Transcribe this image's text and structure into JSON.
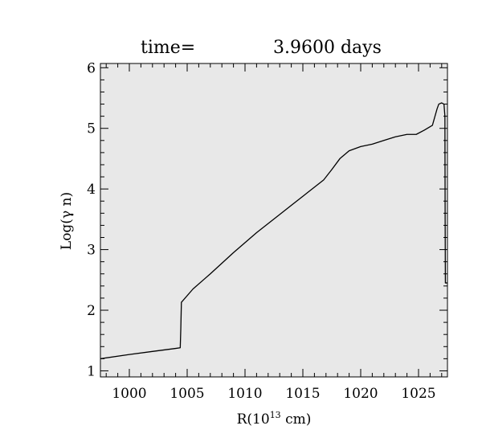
{
  "chart_data": {
    "type": "line",
    "title_left": "time=",
    "title_value": "3.9600 days",
    "xlabel": "R(10",
    "xlabel_exp": "13",
    "xlabel_suffix": " cm)",
    "ylabel": "Log(γ n)",
    "xlim": [
      997.5,
      1027.5
    ],
    "ylim": [
      0.9,
      6.07
    ],
    "xticks": [
      1000,
      1005,
      1010,
      1015,
      1020,
      1025
    ],
    "yticks": [
      1,
      2,
      3,
      4,
      5,
      6
    ],
    "grid": false,
    "plot_background": "#e8e8e8",
    "line_color": "#000000",
    "series": [
      {
        "x": [
          997.5,
          1000,
          1002,
          1004,
          1004.4,
          1004.45,
          1004.5,
          1005.5,
          1007,
          1009,
          1011,
          1013,
          1015,
          1016.8,
          1017.5,
          1018.2,
          1019,
          1020,
          1021,
          1022,
          1023,
          1024,
          1024.8,
          1025.5,
          1026.2,
          1026.6,
          1026.75,
          1027,
          1027.2,
          1027.28,
          1027.3,
          1027.32,
          1027.5
        ],
        "y": [
          1.2,
          1.27,
          1.32,
          1.37,
          1.38,
          1.7,
          2.13,
          2.35,
          2.6,
          2.95,
          3.28,
          3.58,
          3.88,
          4.15,
          4.32,
          4.5,
          4.63,
          4.7,
          4.74,
          4.8,
          4.86,
          4.9,
          4.9,
          4.97,
          5.05,
          5.32,
          5.4,
          5.42,
          5.4,
          5.2,
          3.5,
          2.45,
          2.45
        ]
      }
    ]
  }
}
